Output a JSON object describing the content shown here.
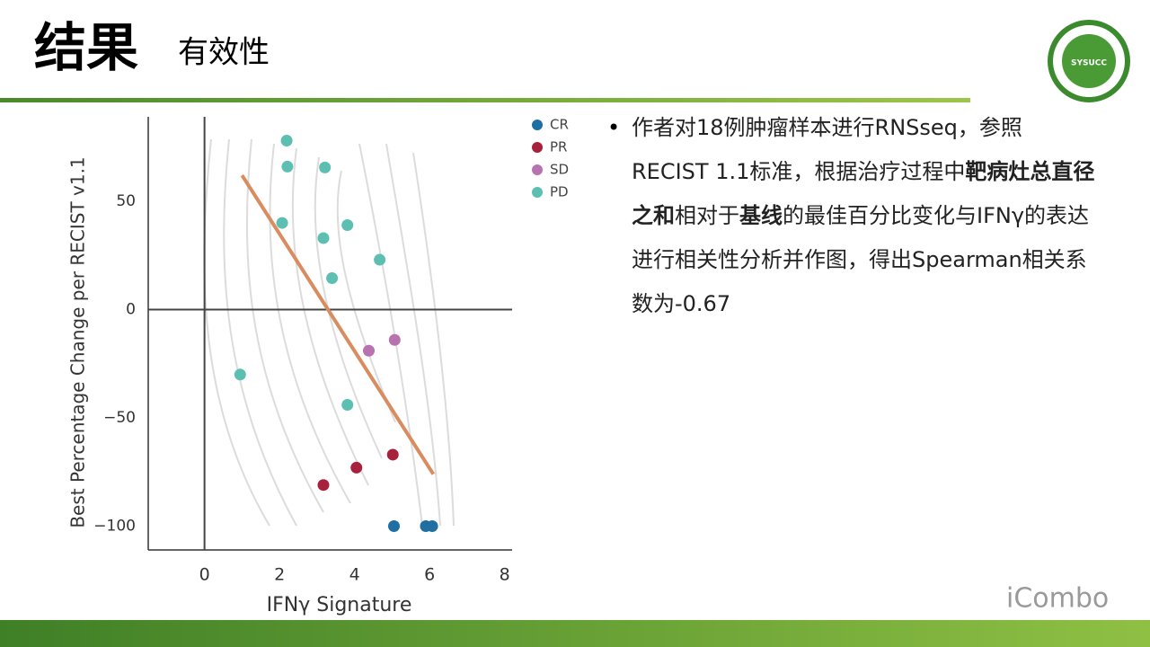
{
  "header": {
    "title": "结果",
    "subtitle": "有效性"
  },
  "logo": {
    "text": "SYSUCC"
  },
  "watermark": "iCombo",
  "bullet": [
    "作者对18例肿瘤样本进行RNSseq，参照RECIST 1.1标准，根据治疗过程中",
    "靶病灶总直径之和",
    "相对于",
    "基线",
    "的最佳百分比变化与IFNγ的表达进行相关性分析并作图，得出Spearman相关系数为-0.67"
  ],
  "chart_data": {
    "type": "scatter",
    "xlabel": "IFNγ Signature",
    "ylabel": "Best Percentage Change per RECIST v1.1",
    "xlim": [
      -1.5,
      8.2
    ],
    "ylim": [
      -111,
      89
    ],
    "xticks": [
      0,
      2,
      4,
      6,
      8
    ],
    "yticks": [
      {
        "value": -100,
        "label": "−100"
      },
      {
        "value": -50,
        "label": "−50"
      },
      0,
      50
    ],
    "legend": "upper right",
    "series": [
      {
        "name": "CR",
        "color": "#1f6fa3",
        "x": [
          5.05,
          5.9,
          6.07
        ],
        "values": [
          -100,
          -100,
          -100
        ]
      },
      {
        "name": "PR",
        "color": "#a8213c",
        "x": [
          5.02,
          4.05,
          3.17
        ],
        "values": [
          -67,
          -73,
          -81
        ]
      },
      {
        "name": "SD",
        "color": "#b872b0",
        "x": [
          4.38,
          5.07
        ],
        "values": [
          -19,
          -14
        ]
      },
      {
        "name": "PD",
        "color": "#5cbfb2",
        "x": [
          2.19,
          2.21,
          3.21,
          2.07,
          3.81,
          3.17,
          4.67,
          3.4,
          0.95,
          3.81
        ],
        "values": [
          78,
          66,
          65.6,
          40,
          39,
          33,
          23,
          14.5,
          -30,
          -44
        ]
      }
    ],
    "trend_line": {
      "color": "#d98c5f",
      "x": [
        1,
        6.1
      ],
      "y": [
        62,
        -76
      ]
    }
  }
}
